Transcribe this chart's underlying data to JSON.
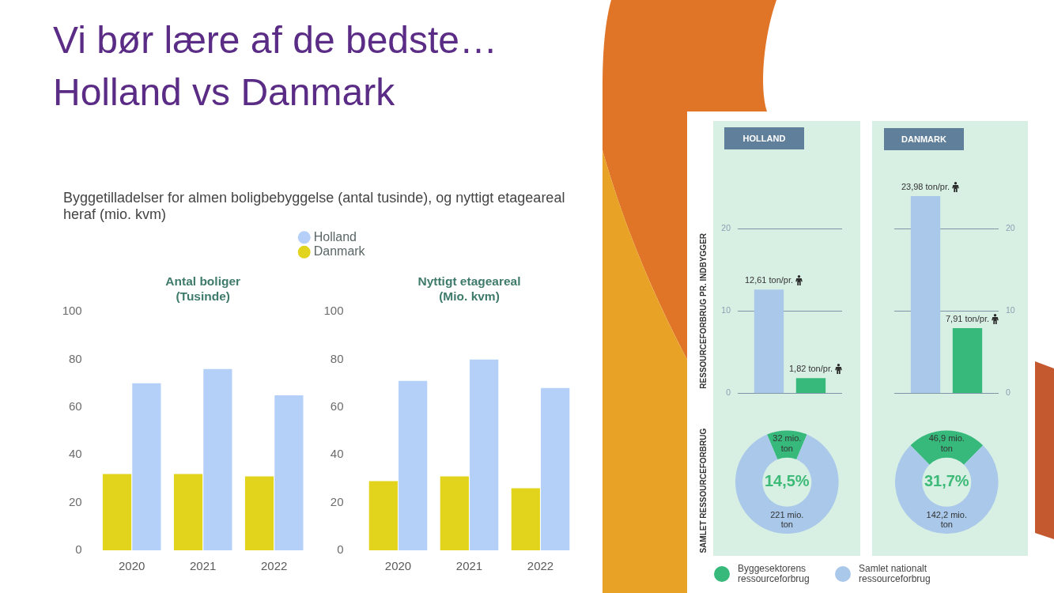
{
  "chart_data": [
    {
      "type": "other",
      "title": "Vi bør lære af de bedste…\nHolland vs Danmark",
      "subtitle": "Byggetilladelser for almen boligbebyggelse (antal tusinde), og nyttigt etageareal heraf (mio. kvm)"
    },
    {
      "type": "bar",
      "title": "Antal boliger\n(Tusinde)",
      "categories": [
        "2020",
        "2021",
        "2022"
      ],
      "series": [
        {
          "name": "Danmark",
          "color": "#e2d41c",
          "values": [
            32,
            32,
            31
          ]
        },
        {
          "name": "Holland",
          "color": "#b4cff8",
          "values": [
            70,
            76,
            65
          ]
        }
      ],
      "ylim": [
        0,
        100
      ],
      "yticks": [
        0,
        20,
        40,
        60,
        80,
        100
      ],
      "legend": "top right"
    },
    {
      "type": "bar",
      "title": "Nyttigt etageareal\n(Mio. kvm)",
      "categories": [
        "2020",
        "2021",
        "2022"
      ],
      "series": [
        {
          "color": "#e2d41c",
          "values": [
            29,
            31,
            26
          ]
        },
        {
          "color": "#b4cff8",
          "values": [
            71,
            80,
            68
          ]
        }
      ],
      "ylim": [
        0,
        100
      ],
      "yticks": [
        0,
        20,
        40,
        60,
        80,
        100
      ]
    },
    {
      "type": "bar",
      "title": "HOLLAND",
      "ylabel": "RESSOURCEFORBRUG PR. INDBYGGER",
      "categories": [
        null,
        null
      ],
      "values": [
        12.61,
        1.82
      ],
      "colors": [
        "#a9c8ea",
        "#36b97a"
      ],
      "value_labels": [
        "12,61 ton/pr.",
        "1,82 ton/pr."
      ],
      "ylim": [
        0,
        20
      ],
      "yticks": [
        0,
        10,
        20
      ],
      "grid": "y"
    },
    {
      "type": "bar",
      "title": "DANMARK",
      "categories": [
        null,
        null
      ],
      "values": [
        23.98,
        7.91
      ],
      "colors": [
        "#a9c8ea",
        "#36b97a"
      ],
      "value_labels": [
        "23,98 ton/pr.",
        "7,91 ton/pr."
      ],
      "ylim": [
        0,
        23.98
      ],
      "yticks": [
        0,
        10,
        20
      ],
      "grid": "y"
    },
    {
      "type": "donut",
      "ylabel": "SAMLET RESSOURCEFORBRUG",
      "categories": [
        "Byggesektorens ressourceforbrug",
        "Samlet nationalt ressourceforbrug"
      ],
      "values": [
        32,
        221
      ],
      "colors": [
        "#36b97a",
        "#a9c8ea"
      ],
      "value_labels": [
        "32 mio. ton",
        "221 mio. ton"
      ],
      "annotations": [
        "14,5%"
      ],
      "legend": "bottom"
    },
    {
      "type": "donut",
      "categories": [
        null,
        null
      ],
      "values": [
        46.9,
        142.2
      ],
      "colors": [
        "#36b97a",
        "#a9c8ea"
      ],
      "value_labels": [
        "46,9 mio. ton",
        "142,2 mio. ton"
      ],
      "annotations": [
        "31,7%"
      ]
    }
  ]
}
